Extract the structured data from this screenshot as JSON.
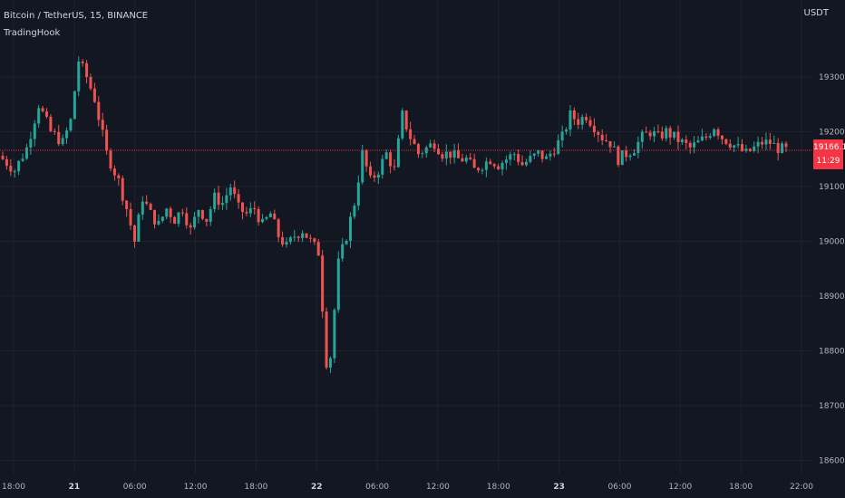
{
  "header": {
    "symbol": "Bitcoin / TetherUS, 15, BINANCE",
    "indicator": "TradingHook",
    "unit": "USDT"
  },
  "price_tag": {
    "price": "19166.14",
    "countdown": "11:29"
  },
  "colors": {
    "background": "#131722",
    "grid": "#1e222d",
    "up": "#26a69a",
    "down": "#ef5350",
    "price_line": "#f23645"
  },
  "chart_data": {
    "type": "candlestick",
    "title": "",
    "xlabel": "",
    "ylabel": "",
    "ylim": [
      18600,
      19400
    ],
    "y_ticks": [
      "19300.00",
      "19200.00",
      "19100.00",
      "19000.00",
      "18900.00",
      "18800.00",
      "18700.00",
      "18600.00"
    ],
    "x_ticks": [
      {
        "label": "18:00",
        "bold": false
      },
      {
        "label": "21",
        "bold": true
      },
      {
        "label": "06:00",
        "bold": false
      },
      {
        "label": "12:00",
        "bold": false
      },
      {
        "label": "18:00",
        "bold": false
      },
      {
        "label": "22",
        "bold": true
      },
      {
        "label": "06:00",
        "bold": false
      },
      {
        "label": "12:00",
        "bold": false
      },
      {
        "label": "18:00",
        "bold": false
      },
      {
        "label": "23",
        "bold": true
      },
      {
        "label": "06:00",
        "bold": false
      },
      {
        "label": "12:00",
        "bold": false
      },
      {
        "label": "18:00",
        "bold": false
      },
      {
        "label": "22:00",
        "bold": false
      }
    ],
    "grid": true,
    "last_price": 19166.14,
    "close_path": [
      [
        0,
        19150
      ],
      [
        3,
        19130
      ],
      [
        6,
        19170
      ],
      [
        9,
        19250
      ],
      [
        12,
        19200
      ],
      [
        15,
        19180
      ],
      [
        17,
        19220
      ],
      [
        19,
        19330
      ],
      [
        21,
        19300
      ],
      [
        23,
        19260
      ],
      [
        26,
        19160
      ],
      [
        29,
        19110
      ],
      [
        31,
        19060
      ],
      [
        33,
        19000
      ],
      [
        35,
        19080
      ],
      [
        37,
        19050
      ],
      [
        39,
        19030
      ],
      [
        41,
        19060
      ],
      [
        43,
        19040
      ],
      [
        45,
        19060
      ],
      [
        47,
        19020
      ],
      [
        49,
        19060
      ],
      [
        51,
        19040
      ],
      [
        53,
        19080
      ],
      [
        55,
        19070
      ],
      [
        57,
        19100
      ],
      [
        59,
        19060
      ],
      [
        61,
        19050
      ],
      [
        63,
        19060
      ],
      [
        65,
        19030
      ],
      [
        67,
        19050
      ],
      [
        69,
        19010
      ],
      [
        71,
        18990
      ],
      [
        73,
        19010
      ],
      [
        75,
        19020
      ],
      [
        77,
        19000
      ],
      [
        79,
        18980
      ],
      [
        81,
        18780
      ],
      [
        82,
        18790
      ],
      [
        84,
        18960
      ],
      [
        86,
        19010
      ],
      [
        88,
        19070
      ],
      [
        90,
        19160
      ],
      [
        92,
        19110
      ],
      [
        94,
        19130
      ],
      [
        96,
        19160
      ],
      [
        98,
        19130
      ],
      [
        100,
        19230
      ],
      [
        102,
        19190
      ],
      [
        104,
        19160
      ],
      [
        106,
        19170
      ],
      [
        108,
        19180
      ],
      [
        110,
        19160
      ],
      [
        112,
        19160
      ],
      [
        114,
        19150
      ],
      [
        116,
        19150
      ],
      [
        118,
        19130
      ],
      [
        120,
        19140
      ],
      [
        122,
        19150
      ],
      [
        124,
        19140
      ],
      [
        126,
        19150
      ],
      [
        128,
        19160
      ],
      [
        130,
        19140
      ],
      [
        132,
        19150
      ],
      [
        134,
        19160
      ],
      [
        136,
        19150
      ],
      [
        138,
        19170
      ],
      [
        140,
        19190
      ],
      [
        142,
        19230
      ],
      [
        144,
        19220
      ],
      [
        146,
        19230
      ],
      [
        148,
        19210
      ],
      [
        150,
        19190
      ],
      [
        152,
        19180
      ],
      [
        154,
        19150
      ],
      [
        156,
        19160
      ],
      [
        158,
        19170
      ],
      [
        160,
        19190
      ],
      [
        162,
        19200
      ],
      [
        164,
        19190
      ],
      [
        166,
        19200
      ],
      [
        168,
        19190
      ],
      [
        170,
        19180
      ],
      [
        172,
        19170
      ],
      [
        174,
        19180
      ],
      [
        176,
        19190
      ],
      [
        178,
        19210
      ],
      [
        180,
        19190
      ],
      [
        182,
        19180
      ],
      [
        184,
        19170
      ],
      [
        186,
        19160
      ],
      [
        188,
        19170
      ],
      [
        190,
        19180
      ],
      [
        192,
        19180
      ],
      [
        194,
        19170
      ],
      [
        196,
        19166
      ]
    ]
  }
}
